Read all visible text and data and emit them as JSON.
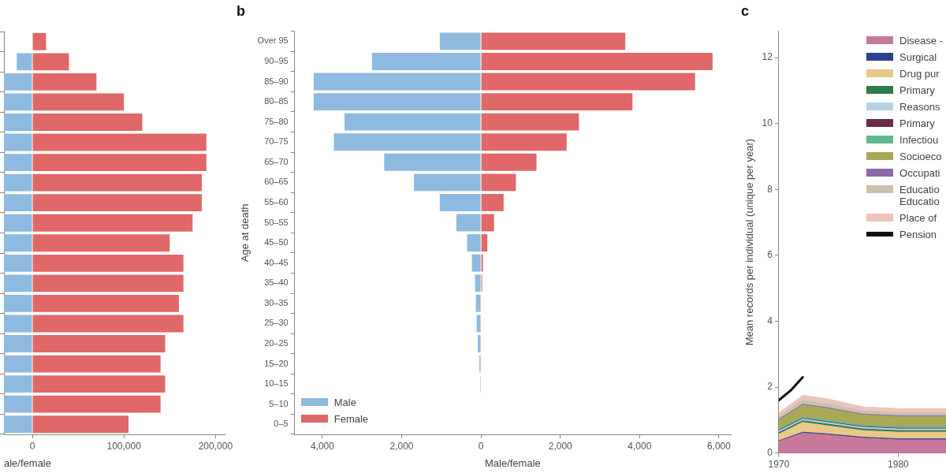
{
  "chart_data": [
    {
      "type": "bar",
      "orientation": "horizontal",
      "stacked": true,
      "xlabel": "ale/female",
      "tick_labels": "x",
      "categories": [
        null,
        null,
        null,
        null,
        null,
        null,
        null,
        null,
        null,
        null,
        null,
        null,
        null,
        null,
        null,
        null,
        null,
        null,
        null,
        null
      ],
      "xlim": [
        -31000,
        210000
      ],
      "xticks": [
        0,
        {
          "value": 100000,
          "label": "100,000"
        },
        {
          "value": 200000,
          "label": "200,000"
        }
      ],
      "series": [
        {
          "color": "#8fbadf",
          "values": [
            null,
            -17000,
            -31000,
            -31000,
            -31000,
            -31000,
            -31000,
            -31000,
            -31000,
            -31000,
            -31000,
            -31000,
            -31000,
            -31000,
            -31000,
            -31000,
            -31000,
            -31000,
            -31000,
            -31000
          ]
        },
        {
          "color": "#e06868",
          "values": [
            15000,
            40000,
            70000,
            100000,
            120000,
            190000,
            190000,
            185000,
            185000,
            175000,
            150000,
            165000,
            165000,
            160000,
            165000,
            145000,
            140000,
            145000,
            140000,
            105000
          ]
        }
      ]
    },
    {
      "type": "bar",
      "orientation": "horizontal",
      "stacked": true,
      "title": "b",
      "xlabel": "Male/female",
      "ylabel": "Age at death",
      "legend": "bottom left",
      "categories": [
        "Over 95",
        "90–95",
        "85–90",
        "80–85",
        "75–80",
        "70–75",
        "65–70",
        "60–65",
        "55–60",
        "50–55",
        "45–50",
        "40–45",
        "35–40",
        "30–35",
        "25–30",
        "20–25",
        "15–20",
        "10–15",
        "5–10",
        "0–5"
      ],
      "xlim": [
        -4700,
        6300
      ],
      "xticks": [
        {
          "value": -4000,
          "label": "4,000"
        },
        {
          "value": -2000,
          "label": "2,000"
        },
        0,
        {
          "value": 2000,
          "label": "2,000"
        },
        {
          "value": 4000,
          "label": "4,000"
        },
        {
          "value": 6000,
          "label": "6,000"
        }
      ],
      "series": [
        {
          "name": "Male",
          "color": "#8fbadf",
          "values": [
            -1040,
            -2750,
            -4220,
            -4220,
            -3440,
            -3710,
            -2440,
            -1690,
            -1040,
            -620,
            -350,
            -230,
            -150,
            -130,
            -110,
            -80,
            -40,
            -20,
            null,
            null
          ]
        },
        {
          "name": "Female",
          "color": "#e06868",
          "values": [
            3640,
            5840,
            5400,
            3820,
            2470,
            2160,
            1400,
            880,
            570,
            330,
            160,
            50,
            30,
            null,
            null,
            null,
            null,
            null,
            null,
            null
          ]
        }
      ]
    },
    {
      "type": "area",
      "stacked": true,
      "title": "c",
      "ylabel": "Mean records per individual (unique per year)",
      "legend": "top right",
      "x": [
        1970,
        1972,
        1974,
        1977,
        1980,
        1984
      ],
      "xlim": [
        1970,
        1984
      ],
      "xticks": [
        1970,
        1980
      ],
      "ylim": [
        0,
        12.8
      ],
      "yticks": [
        0,
        2,
        4,
        6,
        8,
        10,
        12
      ],
      "series": [
        {
          "name": "Disease -",
          "color": "#c8789a",
          "values": [
            0.35,
            0.6,
            0.55,
            0.45,
            0.4,
            0.4
          ]
        },
        {
          "name": "Surgical",
          "color": "#2e3f8f",
          "values": [
            0.02,
            0.03,
            0.03,
            0.03,
            0.03,
            0.03
          ]
        },
        {
          "name": "Drug pur",
          "color": "#e9c98a",
          "values": [
            0.2,
            0.3,
            0.25,
            0.2,
            0.2,
            0.2
          ]
        },
        {
          "name": "Primary",
          "color": "#2f7a4e",
          "values": [
            0.05,
            0.05,
            0.05,
            0.05,
            0.05,
            0.05
          ]
        },
        {
          "name": "Reasons",
          "color": "#b8d0e6",
          "values": [
            0.05,
            0.05,
            0.05,
            0.05,
            0.05,
            0.05
          ]
        },
        {
          "name": "Primary",
          "color": "#6b2a48",
          "values": [
            0.02,
            0.02,
            0.02,
            0.02,
            0.02,
            0.02
          ]
        },
        {
          "name": "Infectiou",
          "color": "#5fb88f",
          "values": [
            0.05,
            0.05,
            0.05,
            0.05,
            0.05,
            0.05
          ]
        },
        {
          "name": "Socioeco",
          "color": "#a9a955",
          "values": [
            0.25,
            0.35,
            0.35,
            0.3,
            0.3,
            0.3
          ]
        },
        {
          "name": "Occupati",
          "color": "#8c6aa9",
          "values": [
            0.03,
            0.03,
            0.03,
            0.03,
            0.03,
            0.03
          ]
        },
        {
          "name": "Educatio\nEducatio",
          "color": "#c9c2ae",
          "values": [
            0.1,
            0.12,
            0.12,
            0.1,
            0.1,
            0.1
          ]
        },
        {
          "name": "Place of",
          "color": "#eec3bb",
          "values": [
            0.1,
            0.15,
            0.15,
            0.12,
            0.12,
            0.12
          ]
        },
        {
          "name": "Pension",
          "type": "line",
          "color": "#111111",
          "x": [
            1970,
            1971,
            1972
          ],
          "values": [
            1.6,
            1.9,
            2.3
          ]
        }
      ]
    }
  ]
}
